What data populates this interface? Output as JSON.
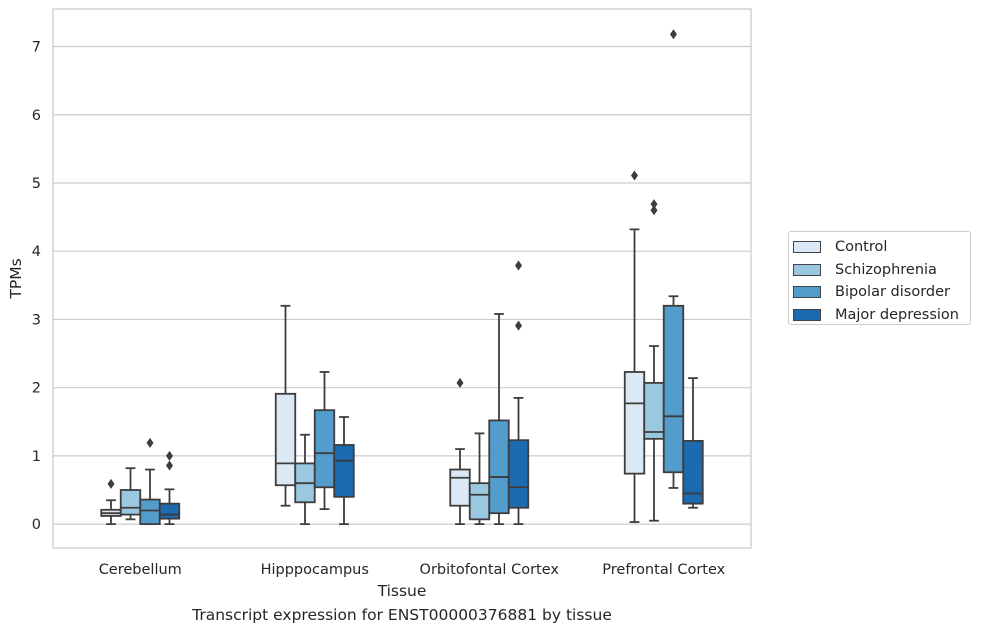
{
  "caption": "Transcript expression for ENST00000376881 by tissue",
  "chart_data": {
    "type": "boxplot",
    "xlabel": "Tissue",
    "ylabel": "TPMs",
    "ylim": [
      -0.35,
      7.55
    ],
    "yticks": [
      0,
      1,
      2,
      3,
      4,
      5,
      6,
      7
    ],
    "grid": "horizontal",
    "legend_position": "right",
    "categories": [
      "Cerebellum",
      "Hipppocampus",
      "Orbitofontal Cortex",
      "Prefrontal Cortex"
    ],
    "series": [
      {
        "name": "Control",
        "color": "#dbe9f6",
        "boxes": [
          {
            "whislo": 0.0,
            "q1": 0.12,
            "med": 0.16,
            "q3": 0.21,
            "whishi": 0.35,
            "fliers": [
              0.59
            ]
          },
          {
            "whislo": 0.27,
            "q1": 0.57,
            "med": 0.89,
            "q3": 1.91,
            "whishi": 3.2,
            "fliers": []
          },
          {
            "whislo": 0.0,
            "q1": 0.27,
            "med": 0.68,
            "q3": 0.8,
            "whishi": 1.1,
            "fliers": [
              2.07
            ]
          },
          {
            "whislo": 0.03,
            "q1": 0.74,
            "med": 1.77,
            "q3": 2.23,
            "whishi": 4.32,
            "fliers": [
              5.11
            ]
          }
        ]
      },
      {
        "name": "Schizophrenia",
        "color": "#9ac8e0",
        "boxes": [
          {
            "whislo": 0.07,
            "q1": 0.14,
            "med": 0.24,
            "q3": 0.5,
            "whishi": 0.82,
            "fliers": []
          },
          {
            "whislo": 0.0,
            "q1": 0.32,
            "med": 0.6,
            "q3": 0.89,
            "whishi": 1.31,
            "fliers": []
          },
          {
            "whislo": 0.0,
            "q1": 0.07,
            "med": 0.43,
            "q3": 0.6,
            "whishi": 1.33,
            "fliers": []
          },
          {
            "whislo": 0.05,
            "q1": 1.25,
            "med": 1.35,
            "q3": 2.07,
            "whishi": 2.61,
            "fliers": [
              4.6,
              4.69
            ]
          }
        ]
      },
      {
        "name": "Bipolar disorder",
        "color": "#529dcc",
        "boxes": [
          {
            "whislo": 0.0,
            "q1": 0.0,
            "med": 0.2,
            "q3": 0.36,
            "whishi": 0.8,
            "fliers": [
              1.19
            ]
          },
          {
            "whislo": 0.22,
            "q1": 0.54,
            "med": 1.04,
            "q3": 1.67,
            "whishi": 2.23,
            "fliers": []
          },
          {
            "whislo": 0.0,
            "q1": 0.16,
            "med": 0.69,
            "q3": 1.52,
            "whishi": 3.08,
            "fliers": []
          },
          {
            "whislo": 0.53,
            "q1": 0.76,
            "med": 1.58,
            "q3": 3.2,
            "whishi": 3.34,
            "fliers": [
              7.18
            ]
          }
        ]
      },
      {
        "name": "Major depression",
        "color": "#1c6aaf",
        "boxes": [
          {
            "whislo": 0.0,
            "q1": 0.08,
            "med": 0.14,
            "q3": 0.3,
            "whishi": 0.51,
            "fliers": [
              0.86,
              1.0
            ]
          },
          {
            "whislo": 0.0,
            "q1": 0.4,
            "med": 0.93,
            "q3": 1.16,
            "whishi": 1.57,
            "fliers": []
          },
          {
            "whislo": 0.0,
            "q1": 0.24,
            "med": 0.54,
            "q3": 1.23,
            "whishi": 1.85,
            "fliers": [
              2.91,
              3.79
            ]
          },
          {
            "whislo": 0.24,
            "q1": 0.3,
            "med": 0.45,
            "q3": 1.22,
            "whishi": 2.14,
            "fliers": []
          }
        ]
      }
    ]
  }
}
